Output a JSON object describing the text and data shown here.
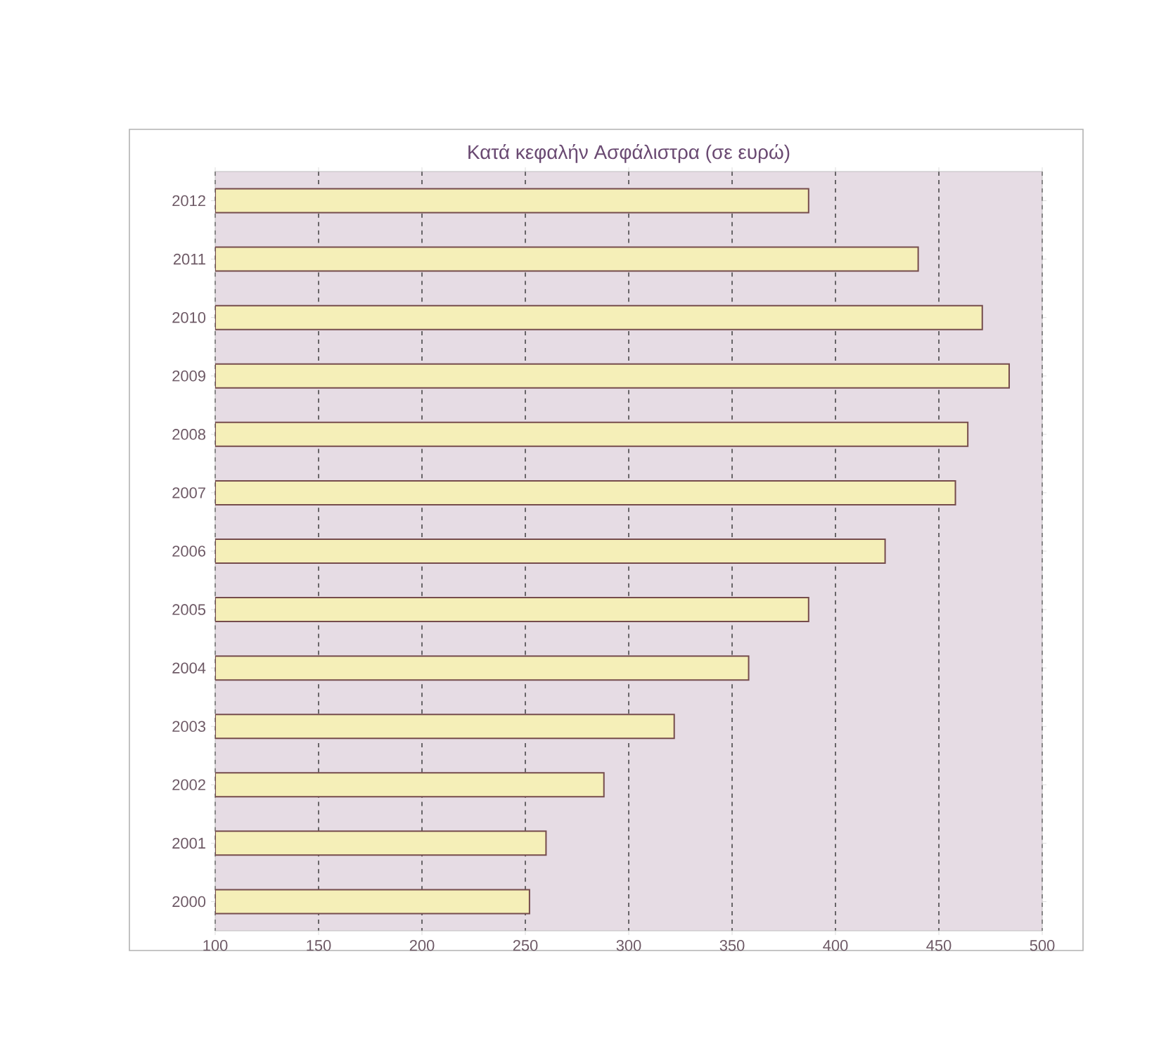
{
  "chart_data": {
    "type": "bar",
    "orientation": "horizontal",
    "title": "Κατά κεφαλήν Ασφάλιστρα (σε ευρώ)",
    "categories": [
      "2012",
      "2011",
      "2010",
      "2009",
      "2008",
      "2007",
      "2006",
      "2005",
      "2004",
      "2003",
      "2002",
      "2001",
      "2000"
    ],
    "values": [
      387,
      440,
      471,
      484,
      464,
      458,
      424,
      387,
      358,
      322,
      288,
      260,
      252
    ],
    "color": "#f5efb8",
    "xlim": [
      100,
      500
    ],
    "xticks": [
      100,
      150,
      200,
      250,
      300,
      350,
      400,
      450,
      500
    ],
    "grid": "x"
  }
}
